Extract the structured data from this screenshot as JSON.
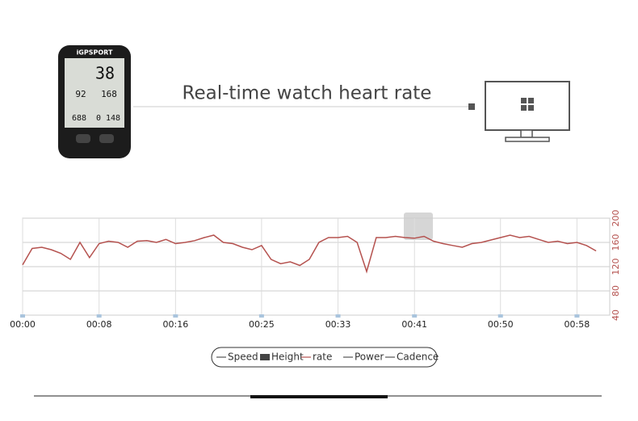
{
  "device": {
    "brand": "iGPSPORT",
    "readings": [
      "38",
      "92",
      "168",
      "688",
      "0 148"
    ]
  },
  "caption": "Real-time watch heart rate",
  "chart_data": {
    "type": "line",
    "x": [
      0,
      1,
      2,
      3,
      4,
      5,
      6,
      7,
      8,
      9,
      10,
      11,
      12,
      13,
      14,
      15,
      16,
      17,
      18,
      19,
      20,
      21,
      22,
      23,
      24,
      25,
      26,
      27,
      28,
      29,
      30,
      31,
      32,
      33,
      34,
      35,
      36,
      37,
      38,
      39,
      40,
      41,
      42,
      43,
      44,
      45,
      46,
      47,
      48,
      49,
      50,
      51,
      52,
      53,
      54,
      55,
      56,
      57,
      58,
      59,
      60
    ],
    "series": [
      {
        "name": "rate",
        "color": "#b5524f",
        "values": [
          123,
          150,
          152,
          148,
          142,
          132,
          160,
          135,
          158,
          162,
          160,
          152,
          162,
          163,
          160,
          165,
          158,
          160,
          163,
          168,
          172,
          160,
          158,
          152,
          148,
          155,
          132,
          125,
          128,
          122,
          132,
          160,
          168,
          168,
          170,
          160,
          112,
          168,
          168,
          170,
          168,
          167,
          170,
          162,
          158,
          155,
          152,
          158,
          160,
          164,
          168,
          172,
          168,
          170,
          165,
          160,
          162,
          158,
          160,
          155,
          146
        ]
      }
    ],
    "legend": [
      {
        "name": "Speed",
        "color": "#555555"
      },
      {
        "name": "Height",
        "color": "#444444"
      },
      {
        "name": "rate",
        "color": "#b5524f"
      },
      {
        "name": "Power",
        "color": "#555555"
      },
      {
        "name": "Cadence",
        "color": "#555555"
      }
    ],
    "xlim": [
      0,
      60.5
    ],
    "xticks": [
      {
        "value": 0,
        "label": "00:00"
      },
      {
        "value": 8,
        "label": "00:08"
      },
      {
        "value": 16,
        "label": "00:16"
      },
      {
        "value": 25,
        "label": "00:25"
      },
      {
        "value": 33,
        "label": "00:33"
      },
      {
        "value": 41,
        "label": "00:41"
      },
      {
        "value": 50,
        "label": "00:50"
      },
      {
        "value": 58,
        "label": "00:58"
      }
    ],
    "ylim": [
      40,
      200
    ],
    "yticks": [
      40,
      80,
      120,
      160,
      200
    ],
    "grid": true
  }
}
